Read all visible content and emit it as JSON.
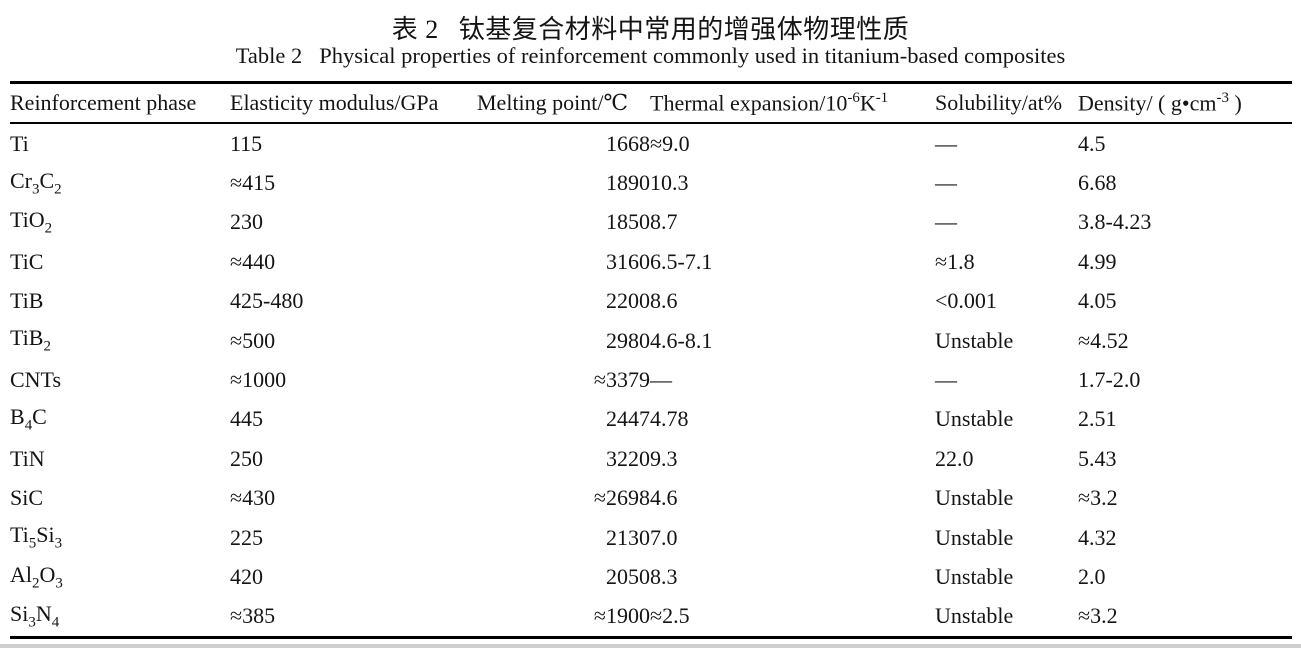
{
  "page": {
    "caption_cn_label": "表 2",
    "caption_cn_text": "钛基复合材料中常用的增强体物理性质",
    "caption_en_label": "Table 2",
    "caption_en_text": "Physical properties of reinforcement commonly used in titanium-based composites"
  },
  "table": {
    "columns": [
      "Reinforcement phase",
      "Elasticity modulus/GPa",
      "Melting point/℃",
      "Thermal expansion/10^-6^K^-1^",
      "Solubility/at%",
      "Density/ ( g•cm^-3^ )"
    ],
    "rows": [
      [
        "Ti",
        "115",
        "1668",
        "≈9.0",
        "—",
        "4.5"
      ],
      [
        "Cr~3~C~2~",
        "≈415",
        "1890",
        "10.3",
        "—",
        "6.68"
      ],
      [
        "TiO~2~",
        "230",
        "1850",
        "8.7",
        "—",
        "3.8-4.23"
      ],
      [
        "TiC",
        "≈440",
        "3160",
        "6.5-7.1",
        "≈1.8",
        "4.99"
      ],
      [
        "TiB",
        "425-480",
        "2200",
        "8.6",
        "<0.001",
        "4.05"
      ],
      [
        "TiB~2~",
        "≈500",
        "2980",
        "4.6-8.1",
        "Unstable",
        "≈4.52"
      ],
      [
        "CNTs",
        "≈1000",
        "≈3379",
        "—",
        "—",
        "1.7-2.0"
      ],
      [
        "B~4~C",
        "445",
        "2447",
        "4.78",
        "Unstable",
        "2.51"
      ],
      [
        "TiN",
        "250",
        "3220",
        "9.3",
        "22.0",
        "5.43"
      ],
      [
        "SiC",
        "≈430",
        "≈2698",
        "4.6",
        "Unstable",
        "≈3.2"
      ],
      [
        "Ti~5~Si~3~",
        "225",
        "2130",
        "7.0",
        "Unstable",
        "4.32"
      ],
      [
        "Al~2~O~3~",
        "420",
        "2050",
        "8.3",
        "Unstable",
        "2.0"
      ],
      [
        "Si~3~N~4~",
        "≈385",
        "≈1900",
        "≈2.5",
        "Unstable",
        "≈3.2"
      ]
    ]
  },
  "colors": {
    "text": "#141414",
    "rule": "#000000",
    "background": "#ffffff"
  }
}
